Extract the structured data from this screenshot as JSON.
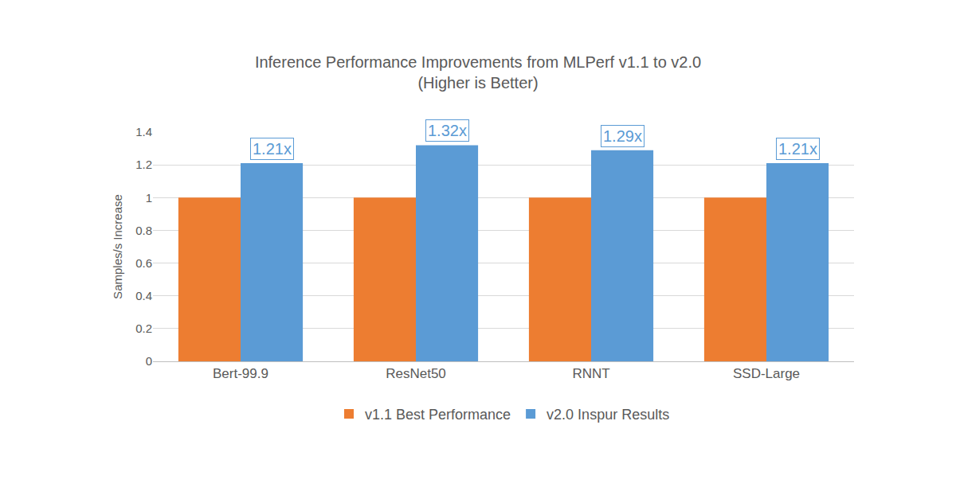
{
  "chart_data": {
    "type": "bar",
    "title": "Inference Performance Improvements from MLPerf v1.1 to v2.0",
    "subtitle": "(Higher is Better)",
    "y_label": "Samples/s Increase",
    "categories": [
      "Bert-99.9",
      "ResNet50",
      "RNNT",
      "SSD-Large"
    ],
    "series": [
      {
        "name": "v1.1 Best Performance",
        "color": "#ED7D31",
        "values": [
          1,
          1,
          1,
          1
        ]
      },
      {
        "name": "v2.0 Inspur Results",
        "color": "#5B9BD5",
        "values": [
          1.21,
          1.32,
          1.29,
          1.21
        ],
        "value_labels": [
          "1.21x",
          "1.32x",
          "1.29x",
          "1.21x"
        ]
      }
    ],
    "ylim": [
      0,
      1.4
    ],
    "yticks": [
      0,
      0.2,
      0.4,
      0.6,
      0.8,
      1,
      1.2,
      1.4
    ],
    "grid": true,
    "legend": "bottom",
    "data_labels": true
  }
}
